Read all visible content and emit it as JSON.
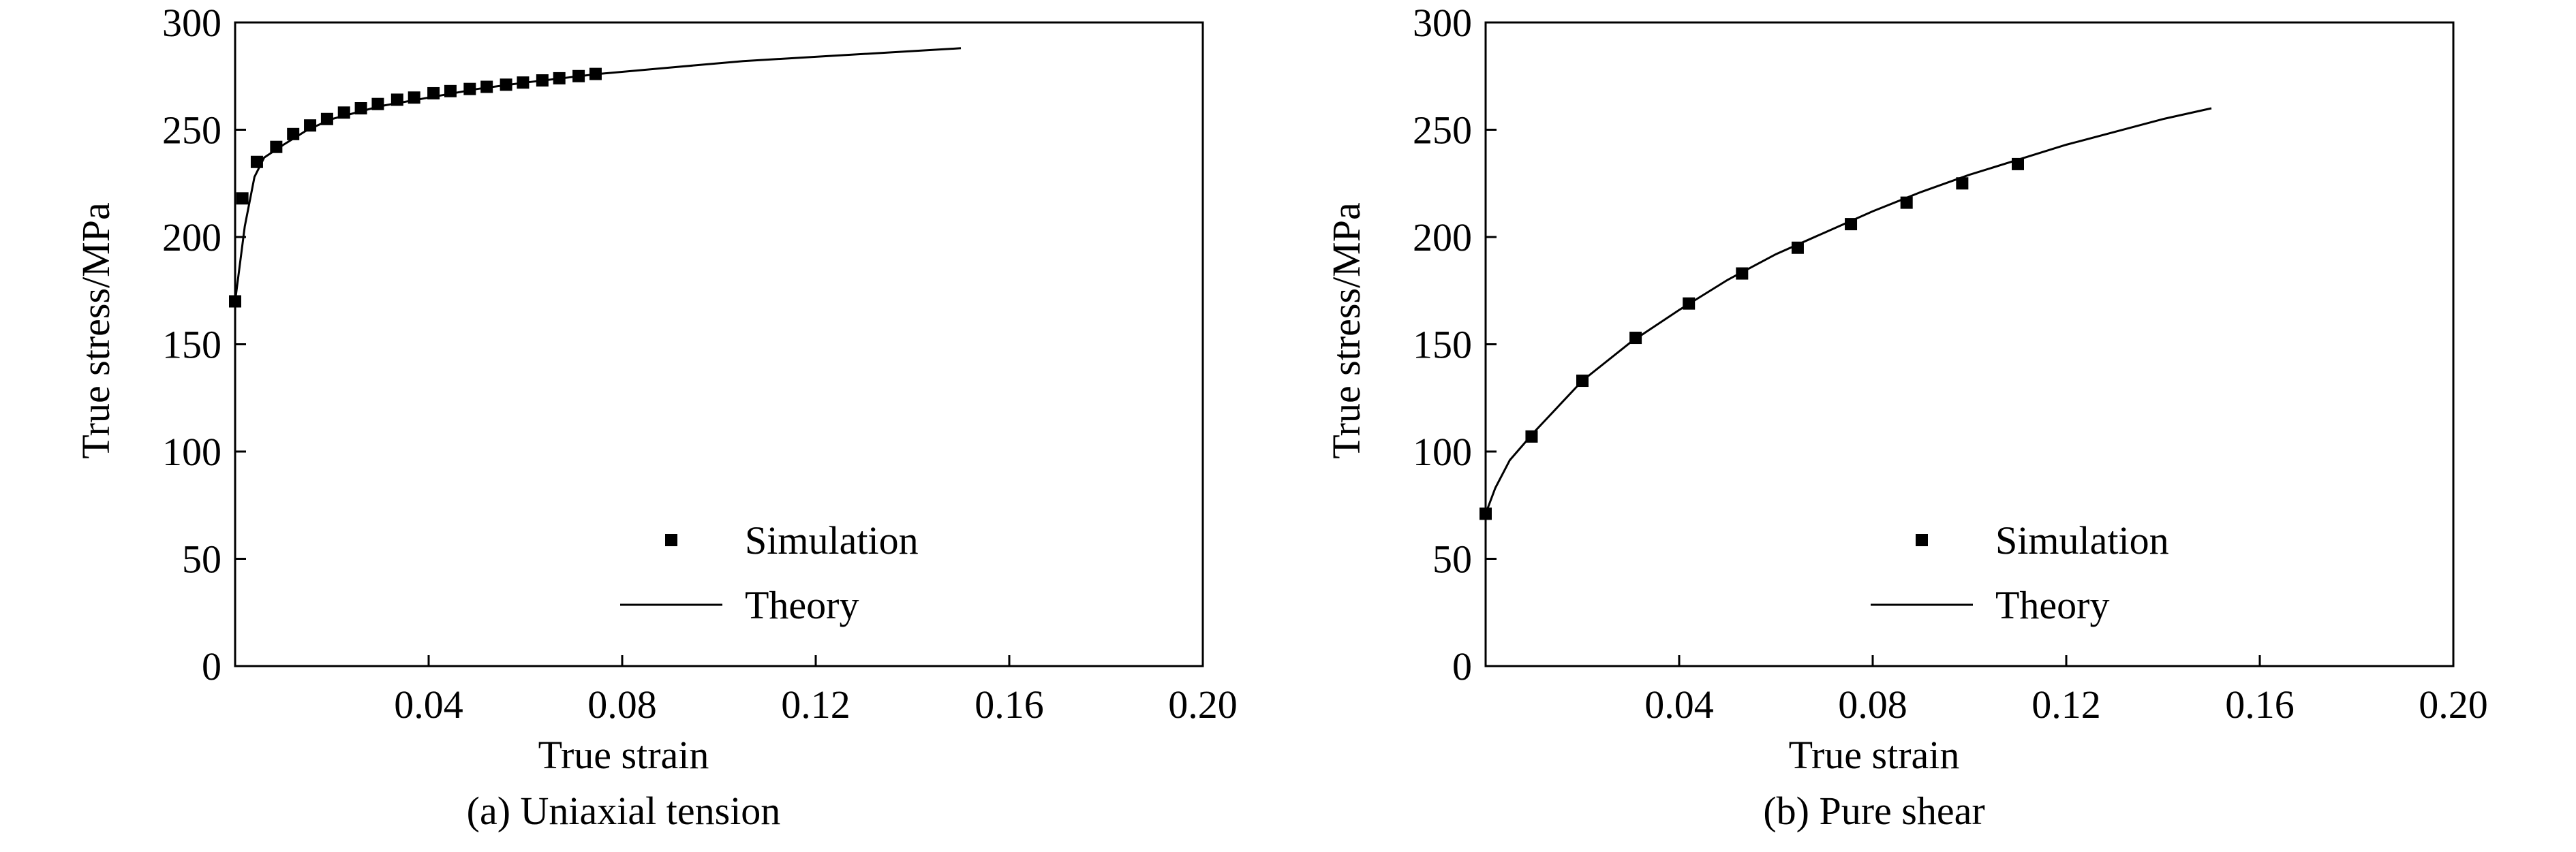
{
  "chart_data": [
    {
      "type": "line",
      "caption": "(a) Uniaxial tension",
      "xlabel": "True strain",
      "ylabel": "True stress/MPa",
      "xlim": [
        0,
        0.2
      ],
      "ylim": [
        0,
        300
      ],
      "xticks": [
        "0.04",
        "0.08",
        "0.12",
        "0.16",
        "0.20"
      ],
      "yticks": [
        "0",
        "50",
        "100",
        "150",
        "200",
        "250",
        "300"
      ],
      "legend_position": "bottom-right",
      "legend": {
        "markers": "Simulation",
        "line": "Theory"
      },
      "series": [
        {
          "name": "Simulation",
          "style": "markers",
          "x": [
            0.0,
            0.0015,
            0.0045,
            0.0085,
            0.012,
            0.0155,
            0.019,
            0.0225,
            0.026,
            0.0295,
            0.0335,
            0.037,
            0.041,
            0.0445,
            0.0485,
            0.052,
            0.056,
            0.0595,
            0.0635,
            0.067,
            0.071,
            0.0745
          ],
          "y": [
            170,
            218,
            235,
            242,
            248,
            252,
            255,
            258,
            260,
            262,
            264,
            265,
            267,
            268,
            269,
            270,
            271,
            272,
            273,
            274,
            275,
            276
          ]
        },
        {
          "name": "Theory",
          "style": "line",
          "x": [
            0.0,
            0.002,
            0.004,
            0.006,
            0.01,
            0.015,
            0.02,
            0.03,
            0.04,
            0.05,
            0.06,
            0.075,
            0.09,
            0.105,
            0.12,
            0.135,
            0.15
          ],
          "y": [
            170,
            205,
            228,
            237,
            243,
            250,
            255,
            261,
            265,
            269,
            272,
            276,
            279,
            282,
            284,
            286,
            288
          ]
        }
      ]
    },
    {
      "type": "line",
      "caption": "(b) Pure shear",
      "xlabel": "True strain",
      "ylabel": "True stress/MPa",
      "xlim": [
        0,
        0.2
      ],
      "ylim": [
        0,
        300
      ],
      "xticks": [
        "0.04",
        "0.08",
        "0.12",
        "0.16",
        "0.20"
      ],
      "yticks": [
        "0",
        "50",
        "100",
        "150",
        "200",
        "250",
        "300"
      ],
      "legend_position": "bottom-right",
      "legend": {
        "markers": "Simulation",
        "line": "Theory"
      },
      "series": [
        {
          "name": "Simulation",
          "style": "markers",
          "x": [
            0.0,
            0.0095,
            0.02,
            0.031,
            0.042,
            0.053,
            0.0645,
            0.0755,
            0.087,
            0.0985,
            0.11
          ],
          "y": [
            71,
            107,
            133,
            153,
            169,
            183,
            195,
            206,
            216,
            225,
            234
          ]
        },
        {
          "name": "Theory",
          "style": "line",
          "x": [
            0.0,
            0.002,
            0.005,
            0.01,
            0.02,
            0.03,
            0.04,
            0.05,
            0.06,
            0.07,
            0.08,
            0.09,
            0.1,
            0.11,
            0.12,
            0.13,
            0.14,
            0.15
          ],
          "y": [
            71,
            83,
            96,
            109,
            133,
            151,
            166,
            180,
            192,
            202,
            212,
            221,
            229,
            236,
            243,
            249,
            255,
            260
          ]
        }
      ]
    }
  ]
}
